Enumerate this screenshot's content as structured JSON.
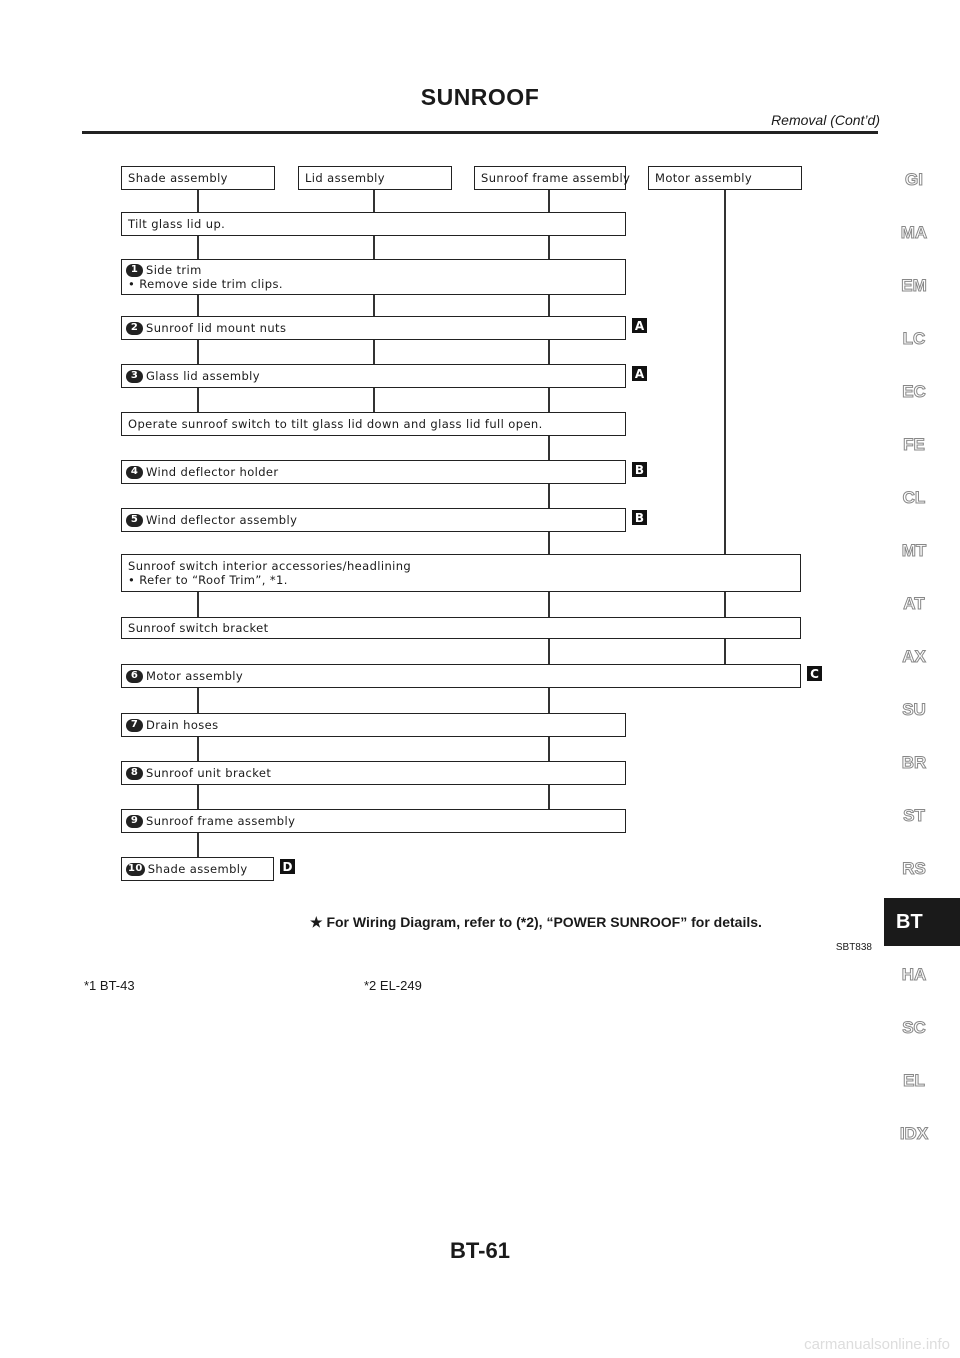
{
  "header": {
    "title": "SUNROOF",
    "subtitle": "Removal (Cont’d)"
  },
  "diagram": {
    "top_boxes": [
      "Shade assembly",
      "Lid assembly",
      "Sunroof frame assembly",
      "Motor assembly"
    ],
    "steps": [
      {
        "num": "",
        "lines": [
          "Tilt glass lid up."
        ],
        "tag": ""
      },
      {
        "num": "1",
        "lines": [
          "Side trim",
          "• Remove side trim clips."
        ],
        "tag": ""
      },
      {
        "num": "2",
        "lines": [
          "Sunroof lid mount nuts"
        ],
        "tag": "A"
      },
      {
        "num": "3",
        "lines": [
          "Glass lid assembly"
        ],
        "tag": "A"
      },
      {
        "num": "",
        "lines": [
          "Operate sunroof switch to tilt glass lid down and glass lid full open."
        ],
        "tag": ""
      },
      {
        "num": "4",
        "lines": [
          "Wind deflector holder"
        ],
        "tag": "B"
      },
      {
        "num": "5",
        "lines": [
          "Wind deflector assembly"
        ],
        "tag": "B"
      },
      {
        "num": "",
        "lines": [
          "Sunroof switch interior accessories/headlining",
          "• Refer to “Roof Trim”, *1."
        ],
        "tag": ""
      },
      {
        "num": "",
        "lines": [
          "Sunroof switch bracket"
        ],
        "tag": ""
      },
      {
        "num": "6",
        "lines": [
          "Motor assembly"
        ],
        "tag": "C"
      },
      {
        "num": "7",
        "lines": [
          "Drain hoses"
        ],
        "tag": ""
      },
      {
        "num": "8",
        "lines": [
          "Sunroof unit bracket"
        ],
        "tag": ""
      },
      {
        "num": "9",
        "lines": [
          "Sunroof frame assembly"
        ],
        "tag": ""
      },
      {
        "num": "10",
        "lines": [
          "Shade assembly"
        ],
        "tag": "D"
      }
    ],
    "note": "★ For Wiring Diagram, refer to (*2), “POWER SUNROOF” for details.",
    "figure_id": "SBT838"
  },
  "references": [
    "*1   BT-43",
    "*2   EL-249"
  ],
  "side_tabs": [
    "GI",
    "MA",
    "EM",
    "LC",
    "EC",
    "FE",
    "CL",
    "MT",
    "AT",
    "AX",
    "SU",
    "BR",
    "ST",
    "RS",
    "BT",
    "HA",
    "SC",
    "EL",
    "IDX"
  ],
  "active_tab": "BT",
  "page_number": "BT-61",
  "watermark": "carmanualsonline.info"
}
